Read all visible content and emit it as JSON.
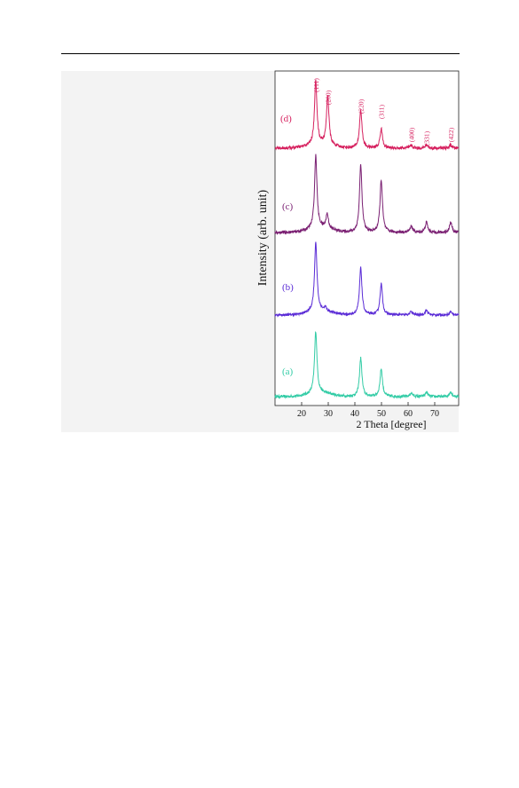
{
  "chart_data": {
    "type": "line",
    "xlabel": "2 Theta [degree]",
    "ylabel": "Intensity (arb. unit)",
    "xlim": [
      10,
      79
    ],
    "xticks": [
      20,
      30,
      40,
      50,
      60,
      70
    ],
    "yticks": "none",
    "grid": false,
    "legend": "none",
    "offset_stacked": true,
    "series": [
      {
        "name": "(a)",
        "color": "#33cca6",
        "peaks": [
          {
            "two_theta": 25.3,
            "rel_height": 1.0
          },
          {
            "two_theta": 42.2,
            "rel_height": 0.62
          },
          {
            "two_theta": 49.9,
            "rel_height": 0.45
          },
          {
            "two_theta": 61.2,
            "rel_height": 0.06
          },
          {
            "two_theta": 66.9,
            "rel_height": 0.07
          },
          {
            "two_theta": 76.0,
            "rel_height": 0.08
          }
        ]
      },
      {
        "name": "(b)",
        "color": "#5a2bd6",
        "peaks": [
          {
            "two_theta": 25.3,
            "rel_height": 1.0
          },
          {
            "two_theta": 28.9,
            "rel_height": 0.05
          },
          {
            "two_theta": 42.2,
            "rel_height": 0.68
          },
          {
            "two_theta": 49.9,
            "rel_height": 0.45
          },
          {
            "two_theta": 61.2,
            "rel_height": 0.05
          },
          {
            "two_theta": 66.9,
            "rel_height": 0.07
          },
          {
            "two_theta": 76.0,
            "rel_height": 0.05
          }
        ]
      },
      {
        "name": "(c)",
        "color": "#7a1f72",
        "peaks": [
          {
            "two_theta": 25.3,
            "rel_height": 1.0
          },
          {
            "two_theta": 29.6,
            "rel_height": 0.2
          },
          {
            "two_theta": 42.2,
            "rel_height": 0.93
          },
          {
            "two_theta": 49.9,
            "rel_height": 0.72
          },
          {
            "two_theta": 61.2,
            "rel_height": 0.09
          },
          {
            "two_theta": 66.9,
            "rel_height": 0.14
          },
          {
            "two_theta": 76.0,
            "rel_height": 0.14
          }
        ]
      },
      {
        "name": "(d)",
        "color": "#d6215f",
        "peaks": [
          {
            "two_theta": 25.3,
            "rel_height": 1.0
          },
          {
            "two_theta": 29.8,
            "rel_height": 0.77
          },
          {
            "two_theta": 42.2,
            "rel_height": 0.6
          },
          {
            "two_theta": 49.9,
            "rel_height": 0.3
          },
          {
            "two_theta": 61.2,
            "rel_height": 0.04
          },
          {
            "two_theta": 66.9,
            "rel_height": 0.05
          },
          {
            "two_theta": 76.0,
            "rel_height": 0.05
          }
        ]
      }
    ],
    "annotations": [
      {
        "text": "(111)",
        "two_theta": 25.3
      },
      {
        "text": "(200)",
        "two_theta": 29.8
      },
      {
        "text": "(220)",
        "two_theta": 42.2
      },
      {
        "text": "(311)",
        "two_theta": 49.9
      },
      {
        "text": "(400)",
        "two_theta": 61.2
      },
      {
        "text": "(331)",
        "two_theta": 66.9
      },
      {
        "text": "(422)",
        "two_theta": 76.0
      }
    ],
    "annotation_color": "#d6215f"
  }
}
